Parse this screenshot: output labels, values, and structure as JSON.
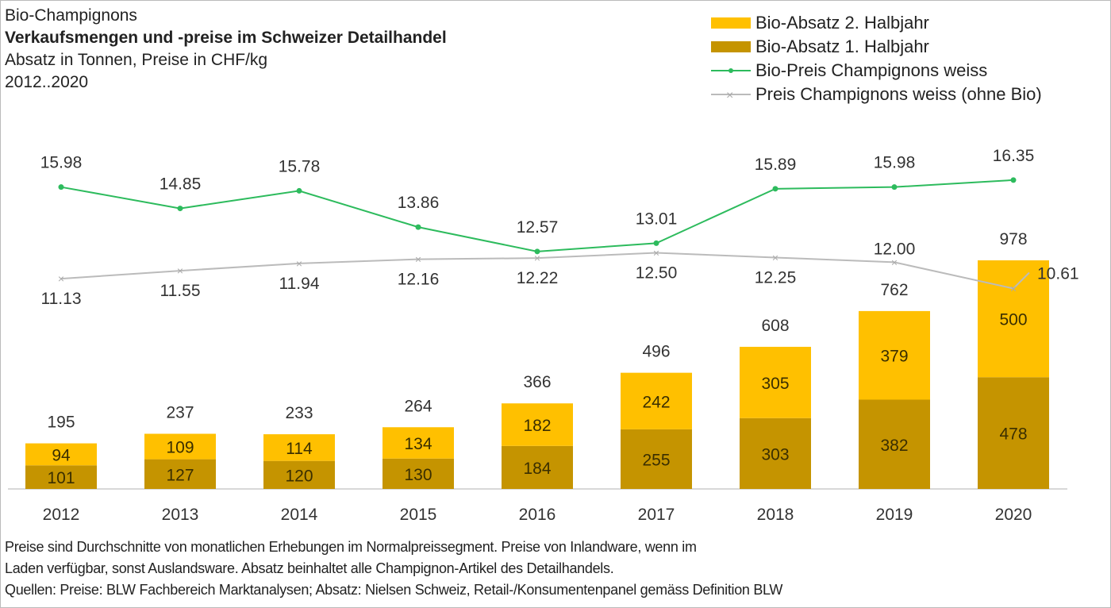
{
  "header": {
    "subject": "Bio-Champignons",
    "title": "Verkaufsmengen und -preise im Schweizer Detailhandel",
    "units": "Absatz in Tonnen,  Preise in CHF/kg",
    "period": "2012..2020"
  },
  "footer": {
    "line1": "Preise sind Durchschnitte von monatlichen Erhebungen im Normalpreissegment. Preise von Inlandware, wenn im",
    "line2": "Laden verfügbar, sonst Auslandsware. Absatz beinhaltet alle Champignon-Artikel des Detailhandels.",
    "line3": "Quellen: Preise: BLW Fachbereich Marktanalysen; Absatz:  Nielsen Schweiz, Retail-/Konsumentenpanel gemäss Definition BLW"
  },
  "chart_data": {
    "type": "bar+line",
    "title": "Verkaufsmengen und -preise im Schweizer Detailhandel",
    "categories": [
      "2012",
      "2013",
      "2014",
      "2015",
      "2016",
      "2017",
      "2018",
      "2019",
      "2020"
    ],
    "stacked_bars": [
      {
        "name": "Bio-Absatz 1. Halbjahr",
        "color": "#c59400",
        "values": [
          101,
          127,
          120,
          130,
          184,
          255,
          303,
          382,
          478
        ]
      },
      {
        "name": "Bio-Absatz 2. Halbjahr",
        "color": "#ffc000",
        "values": [
          94,
          109,
          114,
          134,
          182,
          242,
          305,
          379,
          500
        ]
      }
    ],
    "bar_totals": [
      195,
      237,
      233,
      264,
      366,
      496,
      608,
      762,
      978
    ],
    "lines": [
      {
        "name": "Bio-Preis Champignons weiss",
        "color": "#2dbb5d",
        "marker": "dot",
        "values": [
          15.98,
          14.85,
          15.78,
          13.86,
          12.57,
          13.01,
          15.89,
          15.98,
          16.35
        ]
      },
      {
        "name": "Preis Champignons weiss (ohne Bio)",
        "color": "#bbbbbb",
        "marker": "x",
        "values": [
          11.13,
          11.55,
          11.94,
          12.16,
          12.22,
          12.5,
          12.25,
          12.0,
          10.61
        ]
      }
    ],
    "legend_position": "top-right",
    "grid": false
  }
}
